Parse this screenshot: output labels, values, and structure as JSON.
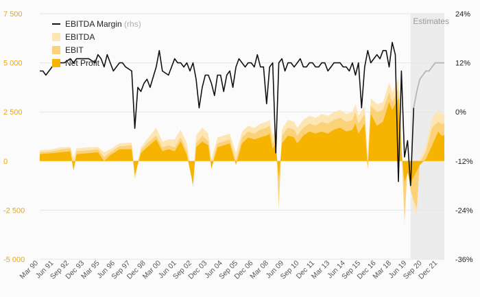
{
  "chart_data": {
    "type": "area",
    "colors": {
      "ebitda": "#fde6b3",
      "ebit": "#fbd27a",
      "net_profit": "#f6b400",
      "margin": "#111111",
      "estimate_margin": "#b5b5b5",
      "estimate_band": "#ececec"
    },
    "estimates_label": "Estimates",
    "legend": [
      {
        "key": "margin",
        "label": "EBITDA Margin",
        "suffix": "(rhs)"
      },
      {
        "key": "ebitda",
        "label": "EBITDA",
        "suffix": ""
      },
      {
        "key": "ebit",
        "label": "EBIT",
        "suffix": ""
      },
      {
        "key": "net_profit",
        "label": "Net Profit",
        "suffix": ""
      }
    ],
    "left_axis": {
      "ticks": [
        "7 500",
        "5 000",
        "2 500",
        "0",
        "-2 500",
        "-5 000"
      ],
      "min": -5000,
      "max": 7500
    },
    "right_axis": {
      "ticks": [
        "24%",
        "12%",
        "0%",
        "-12%",
        "-24%",
        "-36%"
      ],
      "min": -36,
      "max": 24
    },
    "x_ticks": [
      "Mar 90",
      "Jun 91",
      "Sep 92",
      "Dec 93",
      "Mar 95",
      "Jun 96",
      "Sep 97",
      "Dec 98",
      "Mar 00",
      "Jun 01",
      "Sep 02",
      "Dec 03",
      "Jun 04",
      "Sep 05",
      "Dec 06",
      "Mar 08",
      "Jun 09",
      "Sep 10",
      "Dec 11",
      "Mar 13",
      "Jun 14",
      "Sep 15",
      "Dec 16",
      "Mar 18",
      "Jun 19",
      "Sep 20",
      "Dec 21"
    ],
    "x_range": [
      1990.0,
      2023.0
    ],
    "estimate_start": 2020.25,
    "ebitda": [
      [
        1990.0,
        550
      ],
      [
        1991.0,
        600
      ],
      [
        1991.75,
        700
      ],
      [
        1992.5,
        720
      ],
      [
        1992.75,
        200
      ],
      [
        1993.0,
        650
      ],
      [
        1994.0,
        700
      ],
      [
        1994.75,
        720
      ],
      [
        1995.25,
        450
      ],
      [
        1995.75,
        600
      ],
      [
        1996.5,
        900
      ],
      [
        1997.5,
        950
      ],
      [
        1997.75,
        -600
      ],
      [
        1998.25,
        700
      ],
      [
        1998.75,
        1100
      ],
      [
        1999.5,
        1700
      ],
      [
        2000.0,
        1000
      ],
      [
        2000.5,
        1100
      ],
      [
        2001.0,
        1100
      ],
      [
        2001.5,
        1600
      ],
      [
        2002.0,
        900
      ],
      [
        2002.5,
        -900
      ],
      [
        2002.75,
        1300
      ],
      [
        2003.25,
        1700
      ],
      [
        2003.75,
        1400
      ],
      [
        2004.0,
        100
      ],
      [
        2004.5,
        1200
      ],
      [
        2005.0,
        1300
      ],
      [
        2005.5,
        1400
      ],
      [
        2006.0,
        400
      ],
      [
        2006.5,
        1500
      ],
      [
        2007.0,
        1800
      ],
      [
        2007.5,
        1700
      ],
      [
        2008.0,
        1900
      ],
      [
        2008.5,
        2000
      ],
      [
        2008.75,
        2100
      ],
      [
        2009.0,
        1300
      ],
      [
        2009.25,
        1600
      ],
      [
        2009.5,
        -2100
      ],
      [
        2009.75,
        1600
      ],
      [
        2010.25,
        2100
      ],
      [
        2010.75,
        2000
      ],
      [
        2011.0,
        1700
      ],
      [
        2011.5,
        2100
      ],
      [
        2012.0,
        2300
      ],
      [
        2012.5,
        2200
      ],
      [
        2013.0,
        2400
      ],
      [
        2013.5,
        2300
      ],
      [
        2014.0,
        2500
      ],
      [
        2014.5,
        2600
      ],
      [
        2015.0,
        2400
      ],
      [
        2015.5,
        2500
      ],
      [
        2015.75,
        2900
      ],
      [
        2016.0,
        2300
      ],
      [
        2016.5,
        2800
      ],
      [
        2016.75,
        200
      ],
      [
        2017.0,
        3200
      ],
      [
        2017.5,
        2900
      ],
      [
        2018.0,
        3000
      ],
      [
        2018.5,
        4000
      ],
      [
        2018.75,
        3500
      ],
      [
        2019.25,
        4200
      ],
      [
        2019.5,
        1200
      ],
      [
        2019.75,
        -3300
      ],
      [
        2020.0,
        100
      ],
      [
        2020.25,
        -1000
      ],
      [
        2020.5,
        -2400
      ],
      [
        2020.75,
        -2800
      ],
      [
        2021.0,
        100
      ],
      [
        2021.5,
        800
      ],
      [
        2022.0,
        2200
      ],
      [
        2022.5,
        2600
      ],
      [
        2022.75,
        2400
      ],
      [
        2023.0,
        2400
      ]
    ],
    "ebit": [
      [
        1990.0,
        450
      ],
      [
        1991.0,
        500
      ],
      [
        1991.75,
        600
      ],
      [
        1992.5,
        650
      ],
      [
        1992.75,
        -300
      ],
      [
        1993.0,
        500
      ],
      [
        1994.0,
        550
      ],
      [
        1994.75,
        600
      ],
      [
        1995.25,
        200
      ],
      [
        1995.75,
        450
      ],
      [
        1996.5,
        750
      ],
      [
        1997.5,
        800
      ],
      [
        1997.75,
        -900
      ],
      [
        1998.25,
        550
      ],
      [
        1998.75,
        900
      ],
      [
        1999.5,
        1300
      ],
      [
        2000.0,
        700
      ],
      [
        2000.5,
        800
      ],
      [
        2001.0,
        700
      ],
      [
        2001.5,
        1200
      ],
      [
        2002.0,
        500
      ],
      [
        2002.5,
        -1300
      ],
      [
        2002.75,
        900
      ],
      [
        2003.25,
        1300
      ],
      [
        2003.75,
        1000
      ],
      [
        2004.0,
        -200
      ],
      [
        2004.5,
        900
      ],
      [
        2005.0,
        1000
      ],
      [
        2005.5,
        1100
      ],
      [
        2006.0,
        0
      ],
      [
        2006.5,
        1200
      ],
      [
        2007.0,
        1500
      ],
      [
        2007.5,
        1400
      ],
      [
        2008.0,
        1600
      ],
      [
        2008.5,
        1700
      ],
      [
        2008.75,
        1800
      ],
      [
        2009.0,
        900
      ],
      [
        2009.25,
        1200
      ],
      [
        2009.5,
        -2400
      ],
      [
        2009.75,
        1300
      ],
      [
        2010.25,
        1700
      ],
      [
        2010.75,
        1600
      ],
      [
        2011.0,
        1300
      ],
      [
        2011.5,
        1700
      ],
      [
        2012.0,
        1900
      ],
      [
        2012.5,
        1800
      ],
      [
        2013.0,
        2000
      ],
      [
        2013.5,
        1900
      ],
      [
        2014.0,
        2100
      ],
      [
        2014.5,
        2200
      ],
      [
        2015.0,
        2000
      ],
      [
        2015.5,
        2100
      ],
      [
        2015.75,
        2500
      ],
      [
        2016.0,
        1900
      ],
      [
        2016.5,
        2400
      ],
      [
        2016.75,
        -200
      ],
      [
        2017.0,
        2800
      ],
      [
        2017.5,
        2500
      ],
      [
        2018.0,
        2600
      ],
      [
        2018.5,
        3500
      ],
      [
        2018.75,
        3000
      ],
      [
        2019.25,
        3700
      ],
      [
        2019.5,
        800
      ],
      [
        2019.75,
        -3000
      ],
      [
        2020.0,
        -300
      ],
      [
        2020.25,
        -1500
      ],
      [
        2020.5,
        -2000
      ],
      [
        2020.75,
        -2400
      ],
      [
        2021.0,
        -100
      ],
      [
        2021.5,
        500
      ],
      [
        2022.0,
        1700
      ],
      [
        2022.5,
        2000
      ],
      [
        2022.75,
        1900
      ],
      [
        2023.0,
        1900
      ]
    ],
    "net_profit": [
      [
        1990.0,
        350
      ],
      [
        1991.0,
        400
      ],
      [
        1991.75,
        450
      ],
      [
        1992.5,
        500
      ],
      [
        1992.75,
        -500
      ],
      [
        1993.0,
        350
      ],
      [
        1994.0,
        400
      ],
      [
        1994.75,
        450
      ],
      [
        1995.25,
        0
      ],
      [
        1995.75,
        300
      ],
      [
        1996.5,
        600
      ],
      [
        1997.5,
        600
      ],
      [
        1997.75,
        -700
      ],
      [
        1998.25,
        400
      ],
      [
        1998.75,
        700
      ],
      [
        1999.5,
        1100
      ],
      [
        2000.0,
        500
      ],
      [
        2000.5,
        600
      ],
      [
        2001.0,
        500
      ],
      [
        2001.5,
        1000
      ],
      [
        2002.0,
        300
      ],
      [
        2002.5,
        -1200
      ],
      [
        2002.75,
        700
      ],
      [
        2003.25,
        1000
      ],
      [
        2003.75,
        800
      ],
      [
        2004.0,
        -400
      ],
      [
        2004.5,
        700
      ],
      [
        2005.0,
        800
      ],
      [
        2005.5,
        900
      ],
      [
        2006.0,
        -200
      ],
      [
        2006.5,
        900
      ],
      [
        2007.0,
        1200
      ],
      [
        2007.5,
        1100
      ],
      [
        2008.0,
        1200
      ],
      [
        2008.5,
        1300
      ],
      [
        2008.75,
        1400
      ],
      [
        2009.0,
        600
      ],
      [
        2009.25,
        900
      ],
      [
        2009.5,
        -900
      ],
      [
        2009.75,
        900
      ],
      [
        2010.25,
        1300
      ],
      [
        2010.75,
        1200
      ],
      [
        2011.0,
        900
      ],
      [
        2011.5,
        1300
      ],
      [
        2012.0,
        1500
      ],
      [
        2012.5,
        1400
      ],
      [
        2013.0,
        1500
      ],
      [
        2013.5,
        1400
      ],
      [
        2014.0,
        1600
      ],
      [
        2014.5,
        1700
      ],
      [
        2015.0,
        1500
      ],
      [
        2015.5,
        1600
      ],
      [
        2015.75,
        1900
      ],
      [
        2016.0,
        1400
      ],
      [
        2016.5,
        1900
      ],
      [
        2016.75,
        -400
      ],
      [
        2017.0,
        2400
      ],
      [
        2017.5,
        1800
      ],
      [
        2018.0,
        2000
      ],
      [
        2018.5,
        3000
      ],
      [
        2018.75,
        2600
      ],
      [
        2019.25,
        3200
      ],
      [
        2019.5,
        500
      ],
      [
        2019.75,
        -1100
      ],
      [
        2020.0,
        -600
      ],
      [
        2020.25,
        -1200
      ],
      [
        2020.5,
        -800
      ],
      [
        2020.75,
        -500
      ],
      [
        2021.0,
        -200
      ],
      [
        2021.5,
        100
      ],
      [
        2022.0,
        800
      ],
      [
        2022.5,
        1500
      ],
      [
        2022.75,
        1300
      ],
      [
        2023.0,
        1300
      ]
    ],
    "ebitda_margin": [
      [
        1990.0,
        10
      ],
      [
        1990.25,
        10
      ],
      [
        1990.5,
        9
      ],
      [
        1991.0,
        11
      ],
      [
        1991.25,
        12
      ],
      [
        1991.5,
        12
      ],
      [
        1992.0,
        12
      ],
      [
        1992.5,
        13
      ],
      [
        1992.75,
        12
      ],
      [
        1993.0,
        13
      ],
      [
        1993.5,
        13
      ],
      [
        1994.0,
        13
      ],
      [
        1994.5,
        12
      ],
      [
        1994.75,
        14
      ],
      [
        1995.0,
        13
      ],
      [
        1995.25,
        11
      ],
      [
        1995.5,
        14
      ],
      [
        1995.75,
        12
      ],
      [
        1996.0,
        10
      ],
      [
        1996.5,
        12
      ],
      [
        1996.75,
        12
      ],
      [
        1997.0,
        11
      ],
      [
        1997.5,
        10
      ],
      [
        1997.75,
        -4
      ],
      [
        1998.0,
        6
      ],
      [
        1998.25,
        5
      ],
      [
        1998.5,
        7
      ],
      [
        1998.75,
        8
      ],
      [
        1999.0,
        6
      ],
      [
        1999.5,
        11
      ],
      [
        1999.75,
        15
      ],
      [
        2000.0,
        10
      ],
      [
        2000.5,
        9
      ],
      [
        2001.0,
        13
      ],
      [
        2001.25,
        12
      ],
      [
        2001.5,
        12
      ],
      [
        2001.75,
        11
      ],
      [
        2002.0,
        12
      ],
      [
        2002.25,
        10
      ],
      [
        2002.5,
        12
      ],
      [
        2002.75,
        8
      ],
      [
        2003.0,
        1
      ],
      [
        2003.25,
        6
      ],
      [
        2003.5,
        9
      ],
      [
        2003.75,
        9
      ],
      [
        2004.0,
        7
      ],
      [
        2004.25,
        4
      ],
      [
        2004.5,
        9
      ],
      [
        2004.75,
        9
      ],
      [
        2005.0,
        5
      ],
      [
        2005.25,
        9
      ],
      [
        2005.5,
        10
      ],
      [
        2005.75,
        6
      ],
      [
        2006.0,
        11
      ],
      [
        2006.25,
        13
      ],
      [
        2006.5,
        12
      ],
      [
        2006.75,
        11
      ],
      [
        2007.0,
        12
      ],
      [
        2007.25,
        12
      ],
      [
        2007.5,
        11
      ],
      [
        2007.75,
        14
      ],
      [
        2008.0,
        11
      ],
      [
        2008.25,
        11
      ],
      [
        2008.5,
        2
      ],
      [
        2008.75,
        11
      ],
      [
        2009.0,
        12
      ],
      [
        2009.25,
        -10
      ],
      [
        2009.5,
        12
      ],
      [
        2009.75,
        13
      ],
      [
        2010.0,
        10
      ],
      [
        2010.25,
        12
      ],
      [
        2010.5,
        12
      ],
      [
        2010.75,
        11
      ],
      [
        2011.0,
        12
      ],
      [
        2011.25,
        13
      ],
      [
        2011.5,
        11
      ],
      [
        2011.75,
        11
      ],
      [
        2012.0,
        12
      ],
      [
        2012.25,
        12
      ],
      [
        2012.5,
        11
      ],
      [
        2012.75,
        11
      ],
      [
        2013.0,
        12
      ],
      [
        2013.25,
        12
      ],
      [
        2013.5,
        10
      ],
      [
        2013.75,
        11
      ],
      [
        2014.0,
        12
      ],
      [
        2014.25,
        12
      ],
      [
        2014.5,
        12
      ],
      [
        2014.75,
        11
      ],
      [
        2015.0,
        11
      ],
      [
        2015.25,
        10
      ],
      [
        2015.5,
        12
      ],
      [
        2015.75,
        9
      ],
      [
        2016.0,
        12
      ],
      [
        2016.25,
        1
      ],
      [
        2016.5,
        11
      ],
      [
        2016.75,
        15
      ],
      [
        2017.0,
        12
      ],
      [
        2017.25,
        13
      ],
      [
        2017.5,
        14
      ],
      [
        2017.75,
        13
      ],
      [
        2018.0,
        15
      ],
      [
        2018.25,
        15
      ],
      [
        2018.5,
        11
      ],
      [
        2018.75,
        17
      ],
      [
        2019.0,
        14
      ],
      [
        2019.25,
        -17
      ],
      [
        2019.5,
        10
      ],
      [
        2019.75,
        -11
      ],
      [
        2020.0,
        -7
      ],
      [
        2020.25,
        -18
      ],
      [
        2020.5,
        1
      ]
    ],
    "ebitda_margin_estimates": [
      [
        2020.5,
        1
      ],
      [
        2020.75,
        5
      ],
      [
        2021.0,
        8
      ],
      [
        2021.25,
        9
      ],
      [
        2021.5,
        10
      ],
      [
        2021.75,
        10
      ],
      [
        2022.0,
        11
      ],
      [
        2022.25,
        12
      ],
      [
        2022.5,
        12
      ],
      [
        2022.75,
        12
      ],
      [
        2023.0,
        12
      ]
    ]
  }
}
